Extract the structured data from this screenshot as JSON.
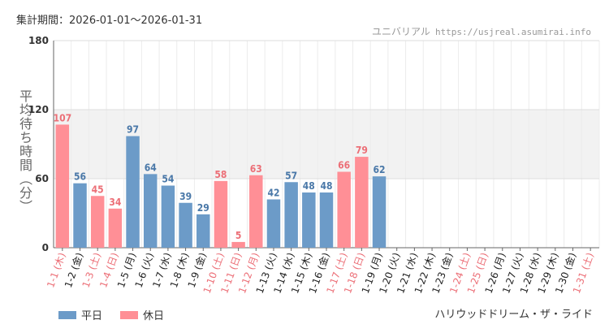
{
  "header": {
    "period_label": "集計期間：2026-01-01〜2026-01-31",
    "brand_name": "ユニバリアル",
    "brand_url": "https://usjreal.asumirai.info"
  },
  "footer": {
    "ride_name": "ハリウッドドリーム・ザ・ライド"
  },
  "colors": {
    "weekday": "#6c9bc8",
    "holiday": "#ff8f96",
    "weekday_label": "#4a78a8",
    "holiday_label": "#ec6f77",
    "band": "#f2f2f2",
    "grid": "#dddddd"
  },
  "chart_data": {
    "type": "bar",
    "title": "",
    "ylabel": "平均待ち時間（分）",
    "xlabel": "",
    "ylim": [
      0,
      180
    ],
    "yticks": [
      0,
      60,
      120,
      180
    ],
    "band": [
      60,
      120
    ],
    "categories": [
      "1-1 (木)",
      "1-2 (金)",
      "1-3 (土)",
      "1-4 (日)",
      "1-5 (月)",
      "1-6 (火)",
      "1-7 (水)",
      "1-8 (木)",
      "1-9 (金)",
      "1-10 (土)",
      "1-11 (日)",
      "1-12 (月)",
      "1-13 (火)",
      "1-14 (水)",
      "1-15 (木)",
      "1-16 (金)",
      "1-17 (土)",
      "1-18 (日)",
      "1-19 (月)",
      "1-20 (火)",
      "1-21 (水)",
      "1-22 (木)",
      "1-23 (金)",
      "1-24 (土)",
      "1-25 (日)",
      "1-26 (月)",
      "1-27 (火)",
      "1-28 (水)",
      "1-29 (木)",
      "1-30 (金)",
      "1-31 (土)"
    ],
    "values": [
      107,
      56,
      45,
      34,
      97,
      64,
      54,
      39,
      29,
      58,
      5,
      63,
      42,
      57,
      48,
      48,
      66,
      79,
      62,
      null,
      null,
      null,
      null,
      null,
      null,
      null,
      null,
      null,
      null,
      null,
      null
    ],
    "holiday": [
      true,
      false,
      true,
      true,
      false,
      false,
      false,
      false,
      false,
      true,
      true,
      true,
      false,
      false,
      false,
      false,
      true,
      true,
      false,
      false,
      false,
      false,
      false,
      true,
      true,
      false,
      false,
      false,
      false,
      false,
      true
    ],
    "legend": [
      {
        "name": "平日",
        "key": "weekday"
      },
      {
        "name": "休日",
        "key": "holiday"
      }
    ]
  }
}
